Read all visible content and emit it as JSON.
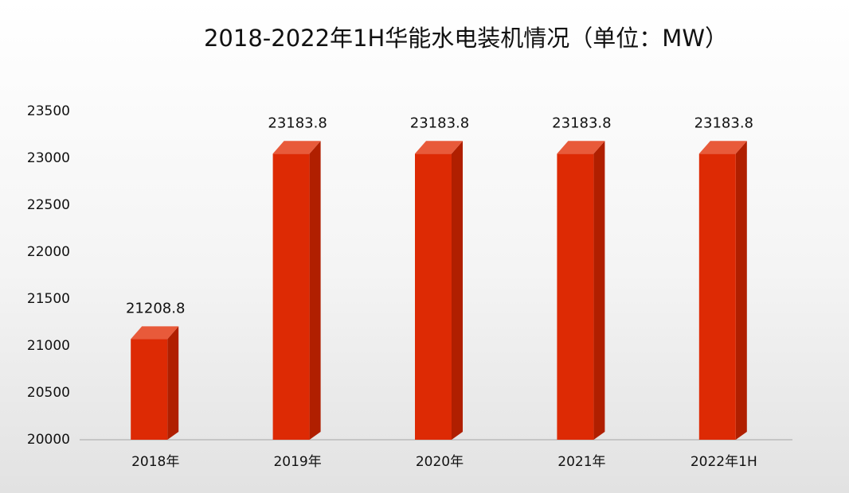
{
  "chart_data": {
    "type": "bar",
    "title": "2018-2022年1H华能水电装机情况（单位：MW）",
    "categories": [
      "2018年",
      "2019年",
      "2020年",
      "2021年",
      "2022年1H"
    ],
    "values": [
      21208.8,
      23183.8,
      23183.8,
      23183.8,
      23183.8
    ],
    "color": "#dd2a04",
    "ylim": [
      20000,
      23500
    ],
    "yticks": [
      20000,
      20500,
      21000,
      21500,
      22000,
      22500,
      23000,
      23500
    ],
    "grid": false
  }
}
